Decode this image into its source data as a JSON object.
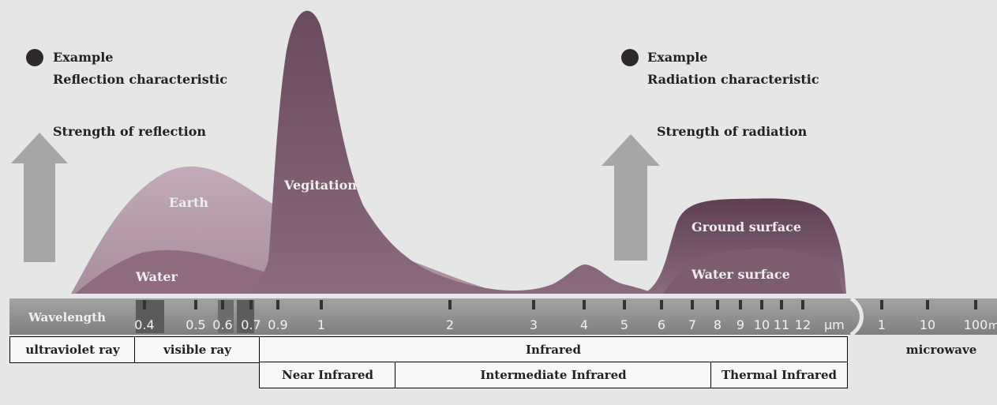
{
  "left_legend": {
    "line1": "Example",
    "line2": "Reflection characteristic",
    "axis_label": "Strength of reflection"
  },
  "right_legend": {
    "line1": "Example",
    "line2": "Radiation characteristic",
    "axis_label": "Strength of radiation"
  },
  "curves": {
    "earth": "Earth",
    "vegetation": "Vegitation",
    "water": "Water",
    "ground_surface": "Ground surface",
    "water_surface": "Water surface"
  },
  "wavelength_bar": {
    "label": "Wavelength",
    "micro_ticks": [
      "0.4",
      "0.5",
      "0.6",
      "0.7",
      "0.9",
      "1",
      "2",
      "3",
      "4",
      "5",
      "6",
      "7",
      "8",
      "9",
      "10",
      "11",
      "12"
    ],
    "micro_unit": "μm",
    "macro_ticks": [
      "1",
      "10",
      "100"
    ],
    "macro_unit": "m"
  },
  "bands": {
    "ultraviolet": "ultraviolet ray",
    "visible": "visible ray",
    "infrared": "Infrared",
    "microwave": "microwave",
    "near_infrared": "Near Infrared",
    "intermediate_infrared": "Intermediate Infrared",
    "thermal_infrared": "Thermal Infrared"
  },
  "colors": {
    "earth": "#b39aa8",
    "vegetation": "#7a5a6c",
    "water": "#8e6b7e",
    "ground_surface": "#6e4e61",
    "water_surface": "#7d5c70",
    "arrow": "#a4a4a4",
    "bar": "#8f8f8f"
  }
}
